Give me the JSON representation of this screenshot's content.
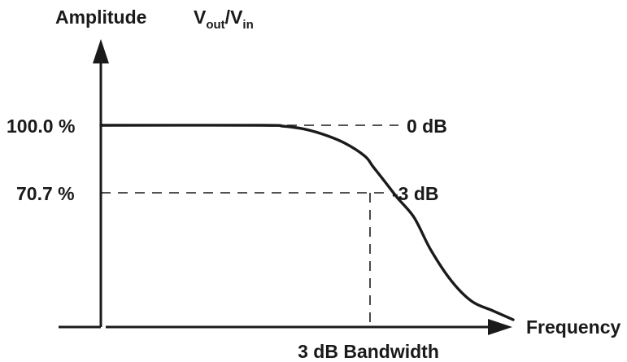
{
  "chart_data": {
    "type": "line",
    "y_axis_label": "Amplitude",
    "ratio_label": {
      "base1": "V",
      "sub1": "out",
      "slash": "/",
      "base2": "V",
      "sub2": "in"
    },
    "x_axis_label": "Frequency",
    "bandwidth_label": "3 dB Bandwidth",
    "levels": [
      {
        "value": 100.0,
        "percent_label": "100.0 %",
        "db_label": "0 dB"
      },
      {
        "value": 70.7,
        "percent_label": "70.7 %",
        "db_label": "-3 dB"
      }
    ],
    "series": [
      {
        "x": [
          0,
          0.39,
          0.44,
          0.49,
          0.54,
          0.59,
          0.64,
          0.66,
          0.69,
          0.72,
          0.76,
          0.8,
          0.85,
          0.9,
          0.95,
          1.0
        ],
        "y": [
          100.0,
          100.0,
          99.6,
          98.2,
          95.3,
          91.0,
          84.2,
          78.8,
          70.7,
          62.5,
          52.5,
          36.0,
          20.0,
          9.4,
          4.7,
          0.0
        ]
      }
    ],
    "cutoff_x": 0.69,
    "y_range": [
      0,
      100
    ],
    "colors": {
      "ink": "#1a1a1a",
      "background": "#ffffff"
    }
  }
}
